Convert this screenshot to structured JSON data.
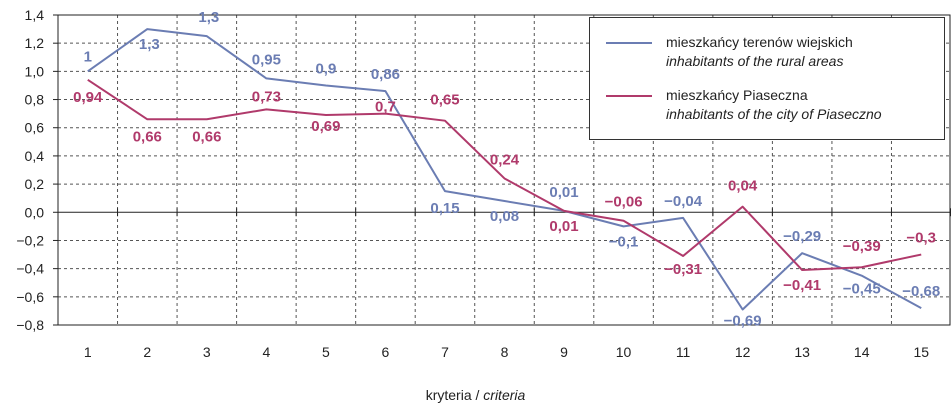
{
  "chart_data": {
    "type": "line",
    "xlabel_pl": "kryteria",
    "xlabel_sep": " / ",
    "xlabel_en": "criteria",
    "categories": [
      "1",
      "2",
      "3",
      "4",
      "5",
      "6",
      "7",
      "8",
      "9",
      "10",
      "11",
      "12",
      "13",
      "14",
      "15"
    ],
    "ylim": [
      -0.8,
      1.4
    ],
    "yticks": [
      "1,4",
      "1,2",
      "1,0",
      "0,8",
      "0,6",
      "0,4",
      "0,2",
      "0,0",
      "−0,2",
      "−0,4",
      "−0,6",
      "−0,8"
    ],
    "ytick_values": [
      1.4,
      1.2,
      1.0,
      0.8,
      0.6,
      0.4,
      0.2,
      0.0,
      -0.2,
      -0.4,
      -0.6,
      -0.8
    ],
    "grid": true,
    "legend_position": "top-right",
    "series": [
      {
        "name_pl": "mieszkańcy terenów wiejskich",
        "name_en": "inhabitants of the rural areas",
        "color": "#6b7db3",
        "values": [
          1.0,
          1.3,
          1.25,
          0.95,
          0.9,
          0.86,
          0.15,
          0.08,
          0.01,
          -0.1,
          -0.04,
          -0.69,
          -0.29,
          -0.45,
          -0.68
        ],
        "labels": [
          "1",
          "1,3",
          "1,3",
          "0,95",
          "0,9",
          "0,86",
          "0,15",
          "0,08",
          "0,01",
          "−0,1",
          "−0,04",
          "−0,69",
          "−0,29",
          "−0,45",
          "−0,68"
        ]
      },
      {
        "name_pl": "mieszkańcy Piaseczna",
        "name_en": "inhabitants of the city of Piaseczno",
        "color": "#b03a6b",
        "values": [
          0.94,
          0.66,
          0.66,
          0.73,
          0.69,
          0.7,
          0.65,
          0.24,
          0.01,
          -0.06,
          -0.31,
          0.04,
          -0.41,
          -0.39,
          -0.3
        ],
        "labels": [
          "0,94",
          "0,66",
          "0,66",
          "0,73",
          "0,69",
          "0,7",
          "0,65",
          "0,24",
          "0,01",
          "−0,06",
          "−0,31",
          "0,04",
          "−0,41",
          "−0,39",
          "−0,3"
        ]
      }
    ]
  }
}
